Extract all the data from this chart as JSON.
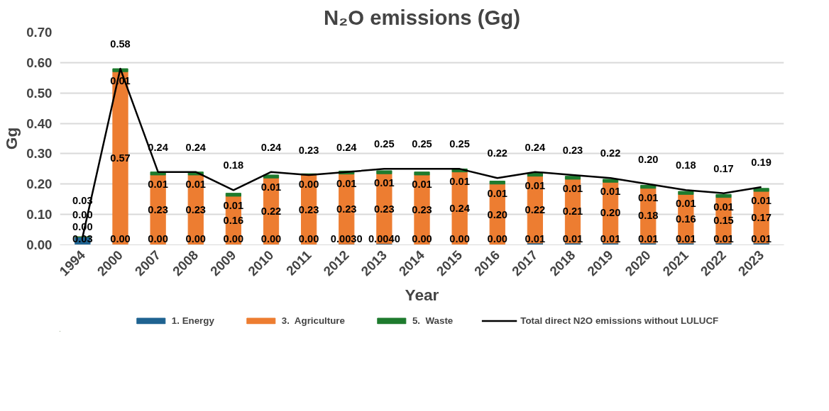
{
  "chart_data": {
    "type": "bar",
    "stacked": true,
    "title": "N₂O emissions (Gg)",
    "xlabel": "Year",
    "ylabel": "Gg",
    "categories": [
      "1994",
      "2000",
      "2007",
      "2008",
      "2009",
      "2010",
      "2011",
      "2012",
      "2013",
      "2014",
      "2015",
      "2016",
      "2017",
      "2018",
      "2019",
      "2020",
      "2021",
      "2022",
      "2023"
    ],
    "series": [
      {
        "name": "1. Energy",
        "color": "#1f6391",
        "values": [
          0.026,
          0,
          0,
          0,
          0,
          0,
          0,
          0.003,
          0.004,
          0,
          0,
          0,
          0.006,
          0.006,
          0.006,
          0.006,
          0.006,
          0.006,
          0.006
        ],
        "value_labels": [
          "0.03",
          "0.00",
          "0.00",
          "0.00",
          "0.00",
          "0.00",
          "0.00",
          "0.0030",
          "0.0040",
          "0.00",
          "0.00",
          "0.00",
          "0.01",
          "0.01",
          "0.01",
          "0.01",
          "0.01",
          "0.01",
          "0.01"
        ]
      },
      {
        "name": "3.  Agriculture",
        "color": "#ed7d31",
        "values": [
          0,
          0.57,
          0.23,
          0.23,
          0.16,
          0.22,
          0.23,
          0.23,
          0.23,
          0.23,
          0.24,
          0.2,
          0.22,
          0.21,
          0.2,
          0.18,
          0.16,
          0.15,
          0.17
        ],
        "value_labels": [
          "0.00",
          "0.57",
          "0.23",
          "0.23",
          "0.16",
          "0.22",
          "0.23",
          "0.23",
          "0.23",
          "0.23",
          "0.24",
          "0.20",
          "0.22",
          "0.21",
          "0.20",
          "0.18",
          "0.16",
          "0.15",
          "0.17"
        ]
      },
      {
        "name": "5.  Waste",
        "color": "#1e7b2e",
        "values": [
          0,
          0.01,
          0.01,
          0.01,
          0.01,
          0.01,
          0.004,
          0.01,
          0.01,
          0.01,
          0.01,
          0.01,
          0.01,
          0.01,
          0.01,
          0.01,
          0.01,
          0.01,
          0.01
        ],
        "value_labels": [
          "0.00",
          "0.01",
          "0.01",
          "0.01",
          "0.01",
          "0.01",
          "0.00",
          "0.01",
          "0.01",
          "0.01",
          "0.01",
          "0.01",
          "0.01",
          "0.01",
          "0.01",
          "0.01",
          "0.01",
          "0.01",
          "0.01"
        ]
      },
      {
        "name": "Total direct N2O emissions without LULUCF",
        "type": "line",
        "color": "#000000",
        "values": [
          0.026,
          0.58,
          0.24,
          0.24,
          0.18,
          0.24,
          0.23,
          0.24,
          0.25,
          0.25,
          0.25,
          0.22,
          0.24,
          0.23,
          0.22,
          0.2,
          0.18,
          0.17,
          0.19
        ],
        "value_labels": [
          "0.03",
          "0.58",
          "0.24",
          "0.24",
          "0.18",
          "0.24",
          "0.23",
          "0.24",
          "0.25",
          "0.25",
          "0.25",
          "0.22",
          "0.24",
          "0.23",
          "0.22",
          "0.20",
          "0.18",
          "0.17",
          "0.19"
        ]
      }
    ],
    "ylim": [
      0,
      0.7
    ],
    "yticks": [
      {
        "value": 0,
        "label": "0.00"
      },
      {
        "value": 0.1,
        "label": "0.10"
      },
      {
        "value": 0.2,
        "label": "0.20"
      },
      {
        "value": 0.3,
        "label": "0.30"
      },
      {
        "value": 0.4,
        "label": "0.40"
      },
      {
        "value": 0.5,
        "label": "0.50"
      },
      {
        "value": 0.6,
        "label": "0.60"
      },
      {
        "value": 0.7,
        "label": "0.70"
      }
    ],
    "grid": "y",
    "legend": "bottom"
  }
}
